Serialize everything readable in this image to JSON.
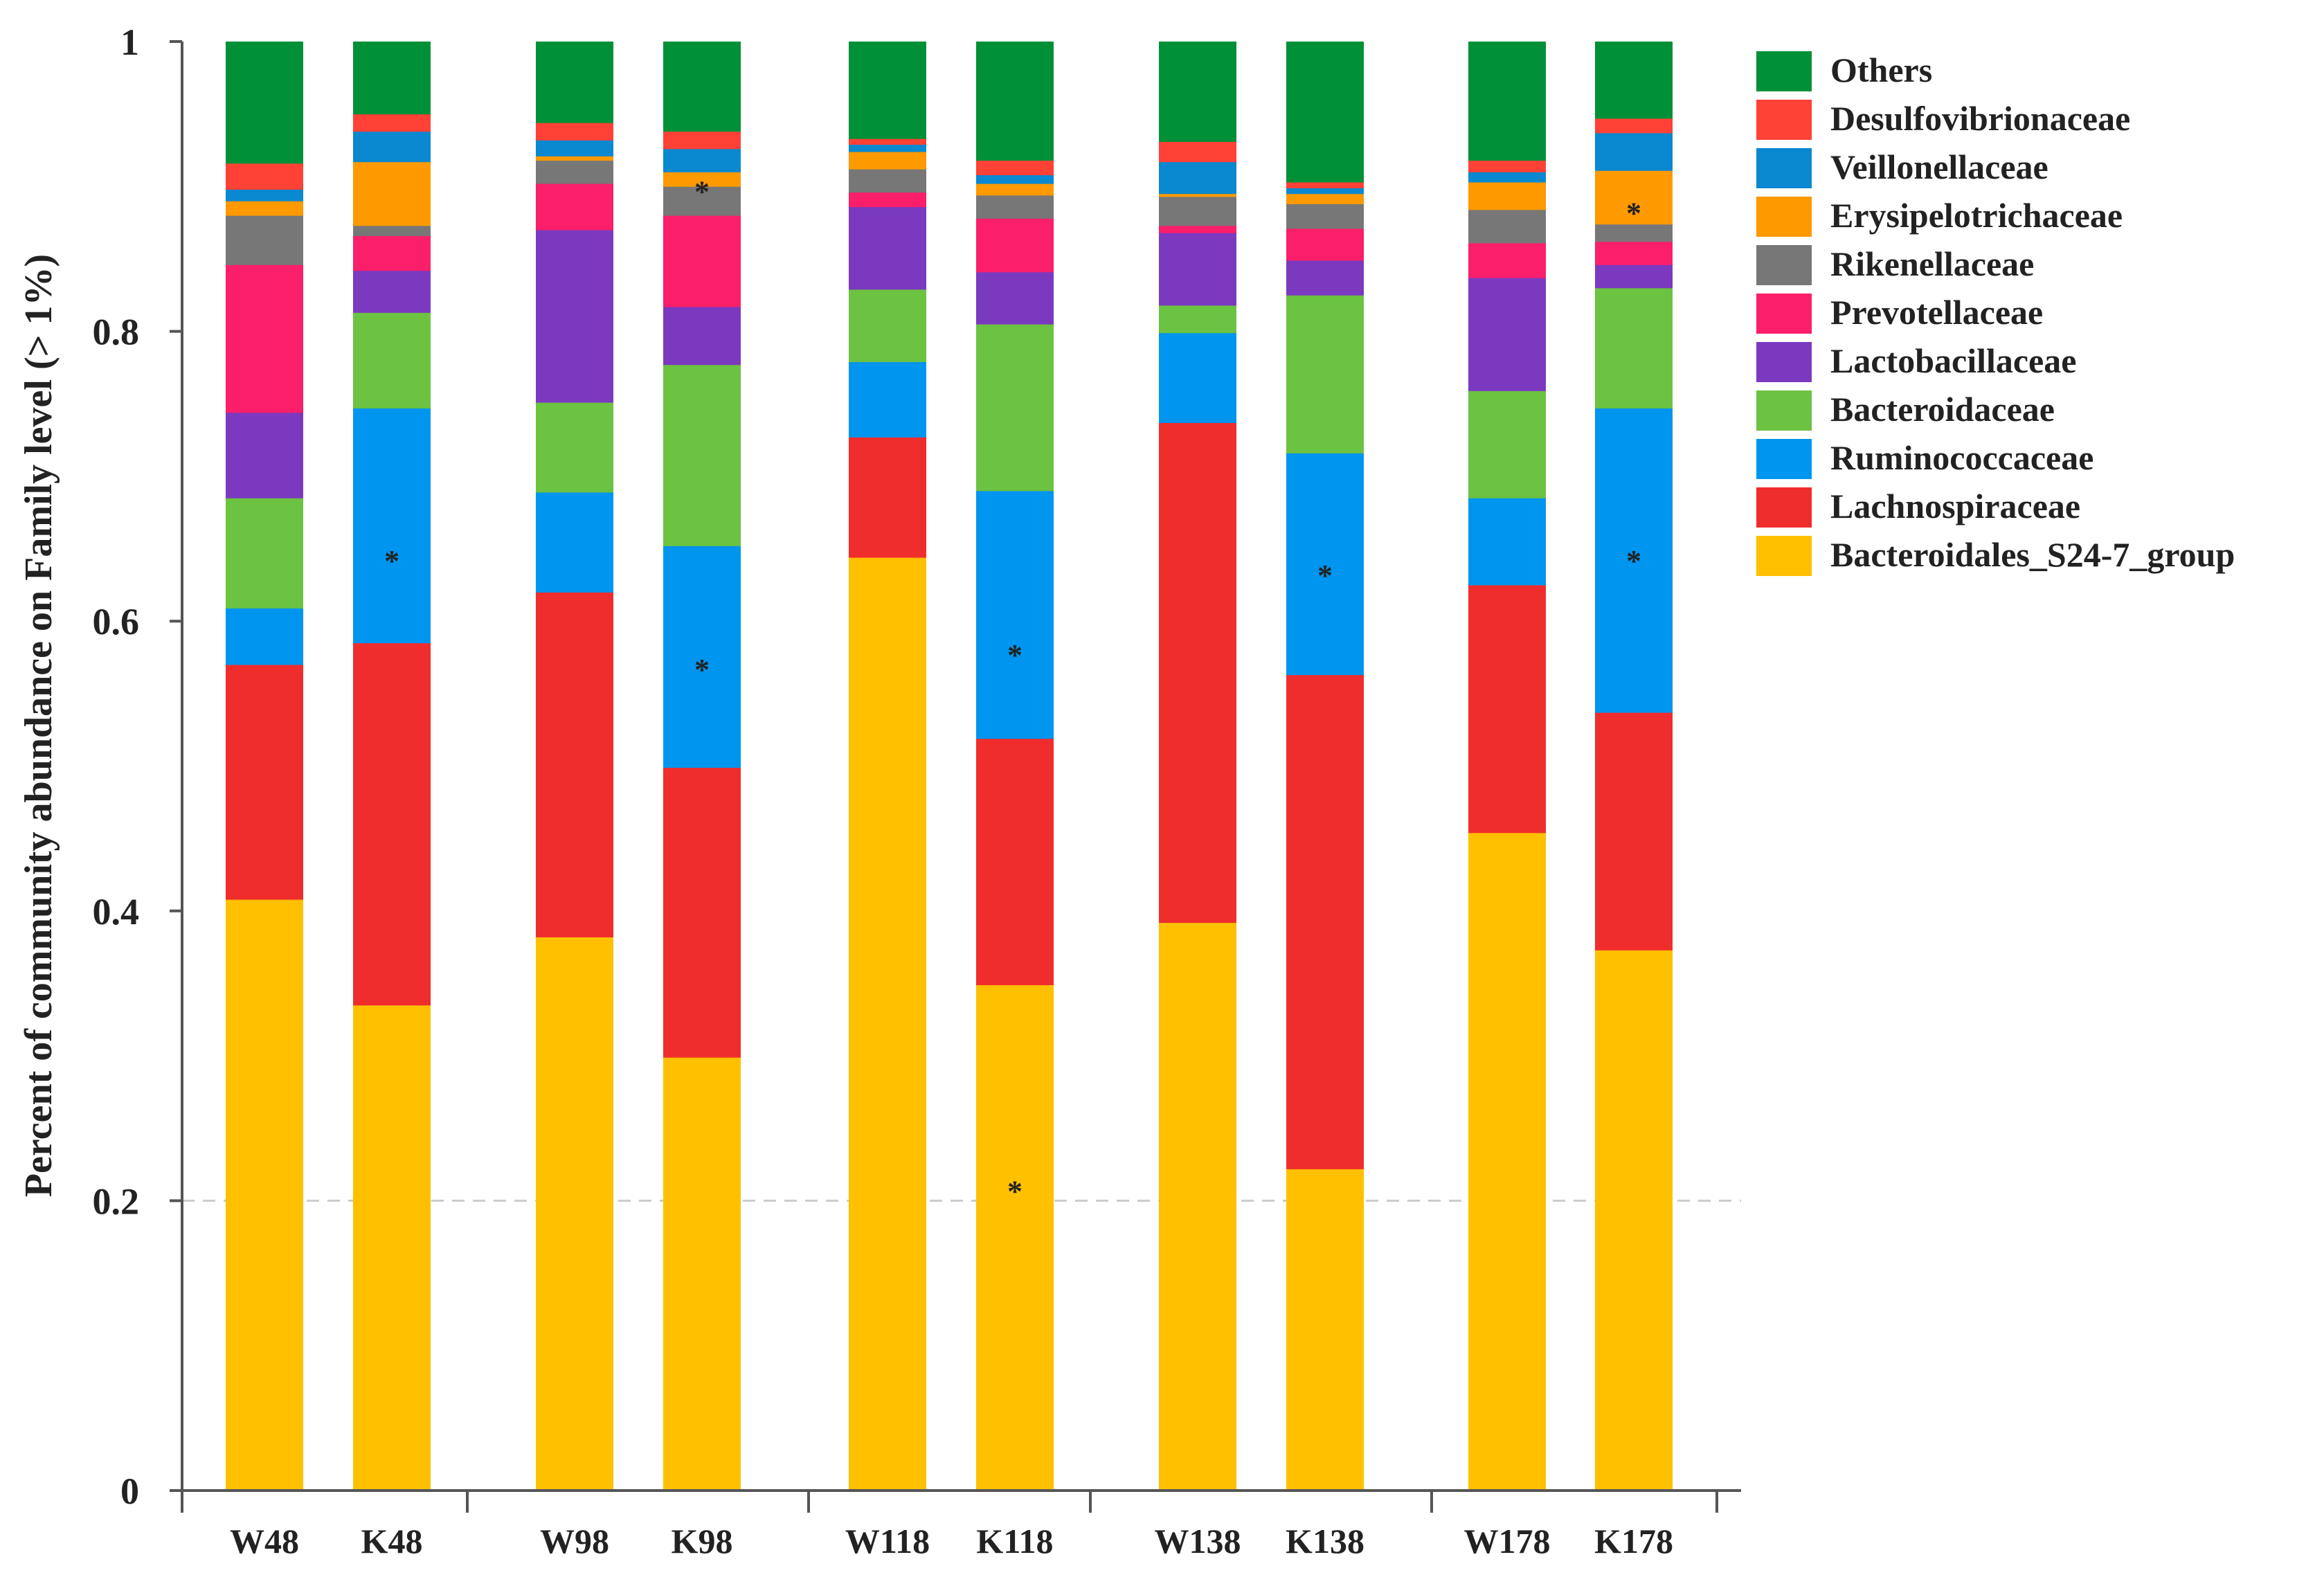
{
  "chart_data": {
    "type": "bar",
    "stacked": true,
    "title": "",
    "xlabel": "",
    "ylabel": "Percent of community abundance on Family level (> 1%)",
    "ylim": [
      0,
      1
    ],
    "yticks": [
      0,
      0.2,
      0.4,
      0.6,
      0.8,
      1
    ],
    "ytick_labels": [
      "0",
      "0.2",
      "0.4",
      "0.6",
      "0.8",
      "1"
    ],
    "grid_y": [
      0.2
    ],
    "legend_position": "top-right",
    "categories": [
      "W48",
      "K48",
      "W98",
      "K98",
      "W118",
      "K118",
      "W138",
      "K138",
      "W178",
      "K178"
    ],
    "series": [
      {
        "name": "Bacteroidales_S24-7_group",
        "color": "#FFC000",
        "values": [
          0.408,
          0.335,
          0.382,
          0.299,
          0.644,
          0.349,
          0.392,
          0.222,
          0.454,
          0.373
        ]
      },
      {
        "name": "Lachnospiraceae",
        "color": "#F02D2D",
        "values": [
          0.162,
          0.25,
          0.238,
          0.2,
          0.083,
          0.17,
          0.345,
          0.341,
          0.171,
          0.164
        ]
      },
      {
        "name": "Ruminococcaceae",
        "color": "#0095EE",
        "values": [
          0.039,
          0.162,
          0.069,
          0.153,
          0.052,
          0.171,
          0.062,
          0.153,
          0.06,
          0.21
        ]
      },
      {
        "name": "Bacteroidaceae",
        "color": "#6CC241",
        "values": [
          0.076,
          0.066,
          0.062,
          0.125,
          0.05,
          0.115,
          0.019,
          0.109,
          0.074,
          0.083
        ]
      },
      {
        "name": "Lactobacillaceae",
        "color": "#7B39C0",
        "values": [
          0.059,
          0.029,
          0.119,
          0.04,
          0.057,
          0.036,
          0.05,
          0.024,
          0.078,
          0.016
        ]
      },
      {
        "name": "Prevotellaceae",
        "color": "#FB1E6A",
        "values": [
          0.102,
          0.024,
          0.032,
          0.063,
          0.01,
          0.037,
          0.005,
          0.022,
          0.024,
          0.016
        ]
      },
      {
        "name": "Rikenellaceae",
        "color": "#777777",
        "values": [
          0.034,
          0.007,
          0.016,
          0.02,
          0.016,
          0.016,
          0.02,
          0.017,
          0.023,
          0.012
        ]
      },
      {
        "name": "Erysipelotrichaceae",
        "color": "#FF9900",
        "values": [
          0.01,
          0.044,
          0.003,
          0.01,
          0.012,
          0.008,
          0.002,
          0.007,
          0.019,
          0.037
        ]
      },
      {
        "name": "Veillonellaceae",
        "color": "#0A88D0",
        "values": [
          0.008,
          0.021,
          0.011,
          0.016,
          0.005,
          0.006,
          0.022,
          0.004,
          0.007,
          0.026
        ]
      },
      {
        "name": "Desulfovibrionaceae",
        "color": "#FF4136",
        "values": [
          0.018,
          0.012,
          0.012,
          0.012,
          0.004,
          0.01,
          0.014,
          0.004,
          0.008,
          0.01
        ]
      },
      {
        "name": "Others",
        "color": "#009037",
        "values": [
          0.084,
          0.05,
          0.056,
          0.062,
          0.067,
          0.082,
          0.069,
          0.097,
          0.082,
          0.053
        ]
      }
    ],
    "legend_order": [
      "Others",
      "Desulfovibrionaceae",
      "Veillonellaceae",
      "Erysipelotrichaceae",
      "Rikenellaceae",
      "Prevotellaceae",
      "Lactobacillaceae",
      "Bacteroidaceae",
      "Ruminococcaceae",
      "Lachnospiraceae",
      "Bacteroidales_S24-7_group"
    ],
    "annotations": [
      {
        "text": "*",
        "category": "K48",
        "y": 0.645
      },
      {
        "text": "*",
        "category": "K98",
        "y": 0.9
      },
      {
        "text": "*",
        "category": "K98",
        "y": 0.57
      },
      {
        "text": "*",
        "category": "K118",
        "y": 0.58
      },
      {
        "text": "*",
        "category": "K118",
        "y": 0.21
      },
      {
        "text": "*",
        "category": "K138",
        "y": 0.635
      },
      {
        "text": "*",
        "category": "K178",
        "y": 0.645
      },
      {
        "text": "*",
        "category": "K178",
        "y": 0.885
      }
    ]
  }
}
